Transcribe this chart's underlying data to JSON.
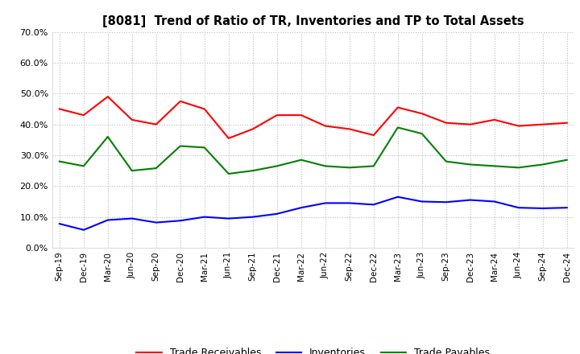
{
  "title": "[8081]  Trend of Ratio of TR, Inventories and TP to Total Assets",
  "x_labels": [
    "Sep-19",
    "Dec-19",
    "Mar-20",
    "Jun-20",
    "Sep-20",
    "Dec-20",
    "Mar-21",
    "Jun-21",
    "Sep-21",
    "Dec-21",
    "Mar-22",
    "Jun-22",
    "Sep-22",
    "Dec-22",
    "Mar-23",
    "Jun-23",
    "Sep-23",
    "Dec-23",
    "Mar-24",
    "Jun-24",
    "Sep-24",
    "Dec-24"
  ],
  "trade_receivables": [
    0.45,
    0.43,
    0.49,
    0.415,
    0.4,
    0.475,
    0.45,
    0.355,
    0.385,
    0.43,
    0.43,
    0.395,
    0.385,
    0.365,
    0.455,
    0.435,
    0.405,
    0.4,
    0.415,
    0.395,
    0.4,
    0.405
  ],
  "inventories": [
    0.078,
    0.058,
    0.09,
    0.095,
    0.082,
    0.088,
    0.1,
    0.095,
    0.1,
    0.11,
    0.13,
    0.145,
    0.145,
    0.14,
    0.165,
    0.15,
    0.148,
    0.155,
    0.15,
    0.13,
    0.128,
    0.13
  ],
  "trade_payables": [
    0.28,
    0.265,
    0.36,
    0.25,
    0.258,
    0.33,
    0.325,
    0.24,
    0.25,
    0.265,
    0.285,
    0.265,
    0.26,
    0.265,
    0.39,
    0.37,
    0.28,
    0.27,
    0.265,
    0.26,
    0.27,
    0.285
  ],
  "tr_color": "#FF0000",
  "inv_color": "#0000FF",
  "tp_color": "#008000",
  "ylim": [
    0.0,
    0.7
  ],
  "yticks": [
    0.0,
    0.1,
    0.2,
    0.3,
    0.4,
    0.5,
    0.6,
    0.7
  ],
  "background_color": "#ffffff",
  "grid_color": "#bbbbbb",
  "legend_labels": [
    "Trade Receivables",
    "Inventories",
    "Trade Payables"
  ]
}
